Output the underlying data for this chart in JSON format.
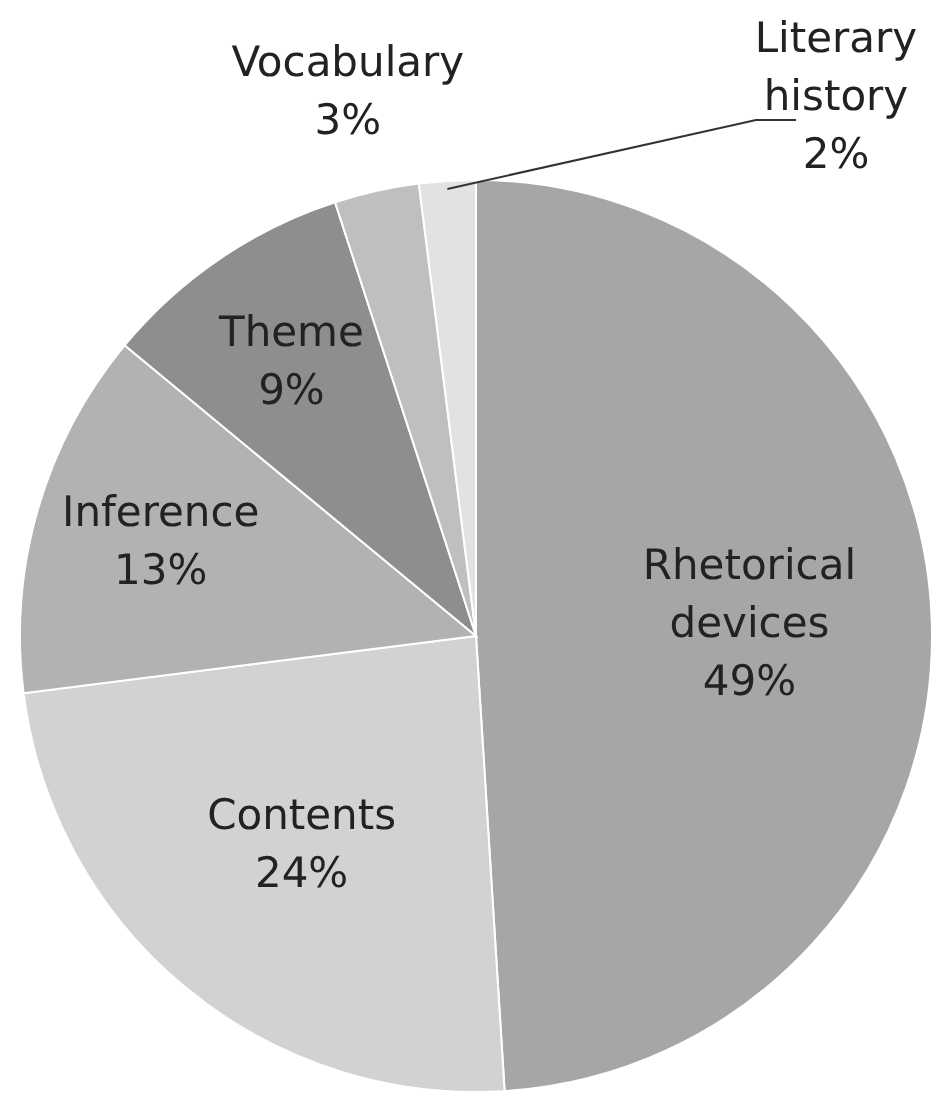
{
  "chart_data": {
    "type": "pie",
    "categories": [
      "Rhetorical devices",
      "Contents",
      "Inference",
      "Theme",
      "Vocabulary",
      "Literary history"
    ],
    "values": [
      49,
      24,
      13,
      9,
      3,
      2
    ],
    "value_labels": [
      "49%",
      "24%",
      "13%",
      "9%",
      "3%",
      "2%"
    ],
    "colors": [
      "#a6a6a6",
      "#d2d2d2",
      "#b2b2b2",
      "#8e8e8e",
      "#bfbfbf",
      "#e2e2e2"
    ]
  }
}
